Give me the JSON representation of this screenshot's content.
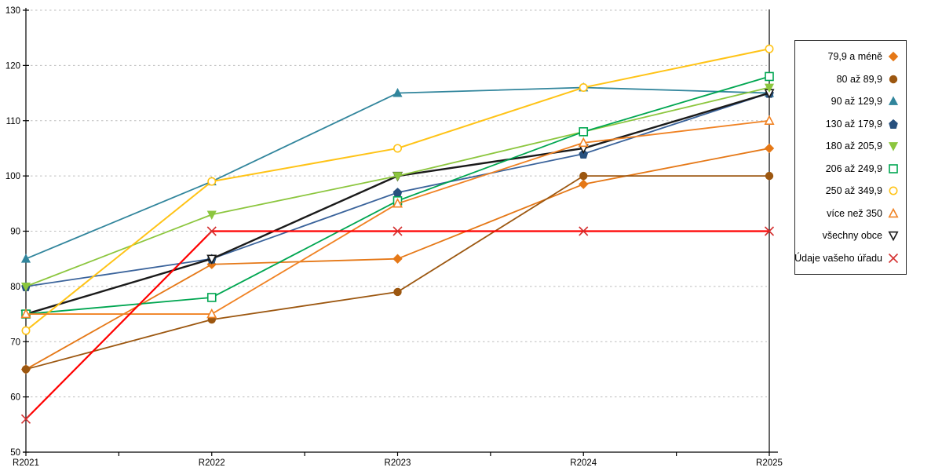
{
  "chart_data": {
    "type": "line",
    "title": "",
    "xlabel": "",
    "ylabel": "",
    "categories": [
      "R2021",
      "R2022",
      "R2023",
      "R2024",
      "R2025"
    ],
    "ylim": [
      50,
      130
    ],
    "ytick_step": 10,
    "grid": "horizontal-dashed",
    "grid_color": "#bdbdbd",
    "axis_color": "#000000",
    "legend_position": "right-box",
    "series": [
      {
        "name": "79,9 a méně",
        "color": "#E57817",
        "marker": "diamond",
        "marker_fill": "filled",
        "line_width": 1.8,
        "z": 1,
        "values": [
          65,
          84,
          85,
          98.5,
          105
        ]
      },
      {
        "name": "80 až 89,9",
        "color": "#9C5710",
        "marker": "circle",
        "marker_fill": "filled",
        "line_width": 1.8,
        "z": 2,
        "values": [
          65,
          74,
          79,
          100,
          100
        ]
      },
      {
        "name": "90 až 129,9",
        "color": "#31859C",
        "marker": "triangle-up",
        "marker_fill": "filled",
        "line_width": 1.8,
        "z": 3,
        "values": [
          85,
          99,
          115,
          116,
          115
        ]
      },
      {
        "name": "130 až 179,9",
        "color": "#3A639B",
        "marker": "pentagon",
        "marker_fill": "filled",
        "marker_color": "#27507E",
        "line_width": 1.8,
        "z": 4,
        "values": [
          80,
          85,
          97,
          104,
          115
        ]
      },
      {
        "name": "180 až 205,9",
        "color": "#8CC63E",
        "marker": "triangle-down",
        "marker_fill": "filled",
        "line_width": 1.8,
        "z": 6,
        "values": [
          80,
          93,
          100,
          108,
          116
        ]
      },
      {
        "name": "206 až 249,9",
        "color": "#00A651",
        "marker": "square",
        "marker_fill": "open",
        "line_width": 1.8,
        "z": 7,
        "values": [
          75,
          78,
          95.5,
          108,
          118
        ]
      },
      {
        "name": "250 až 349,9",
        "color": "#FFC316",
        "marker": "circle",
        "marker_fill": "open",
        "line_width": 2.0,
        "z": 8,
        "values": [
          72,
          99,
          105,
          116,
          123
        ]
      },
      {
        "name": "více než 350",
        "color": "#F08223",
        "marker": "triangle-up",
        "marker_fill": "open",
        "line_width": 1.8,
        "z": 9,
        "values": [
          75,
          75,
          95,
          106,
          110
        ]
      },
      {
        "name": "všechny obce",
        "color": "#1A1A1A",
        "marker": "triangle-down",
        "marker_fill": "open",
        "line_width": 2.4,
        "z": 5,
        "values": [
          75,
          85,
          100,
          105,
          115
        ]
      },
      {
        "name": "Údaje vašeho úřadu",
        "color": "#FF0000",
        "marker": "x",
        "marker_fill": "open",
        "marker_color": "#D43030",
        "line_width": 2.2,
        "z": 10,
        "values": [
          56,
          90,
          90,
          90,
          90
        ]
      }
    ]
  },
  "layout_text": {
    "y_tick_labels": [
      "50",
      "60",
      "70",
      "80",
      "90",
      "100",
      "110",
      "120",
      "130"
    ]
  }
}
